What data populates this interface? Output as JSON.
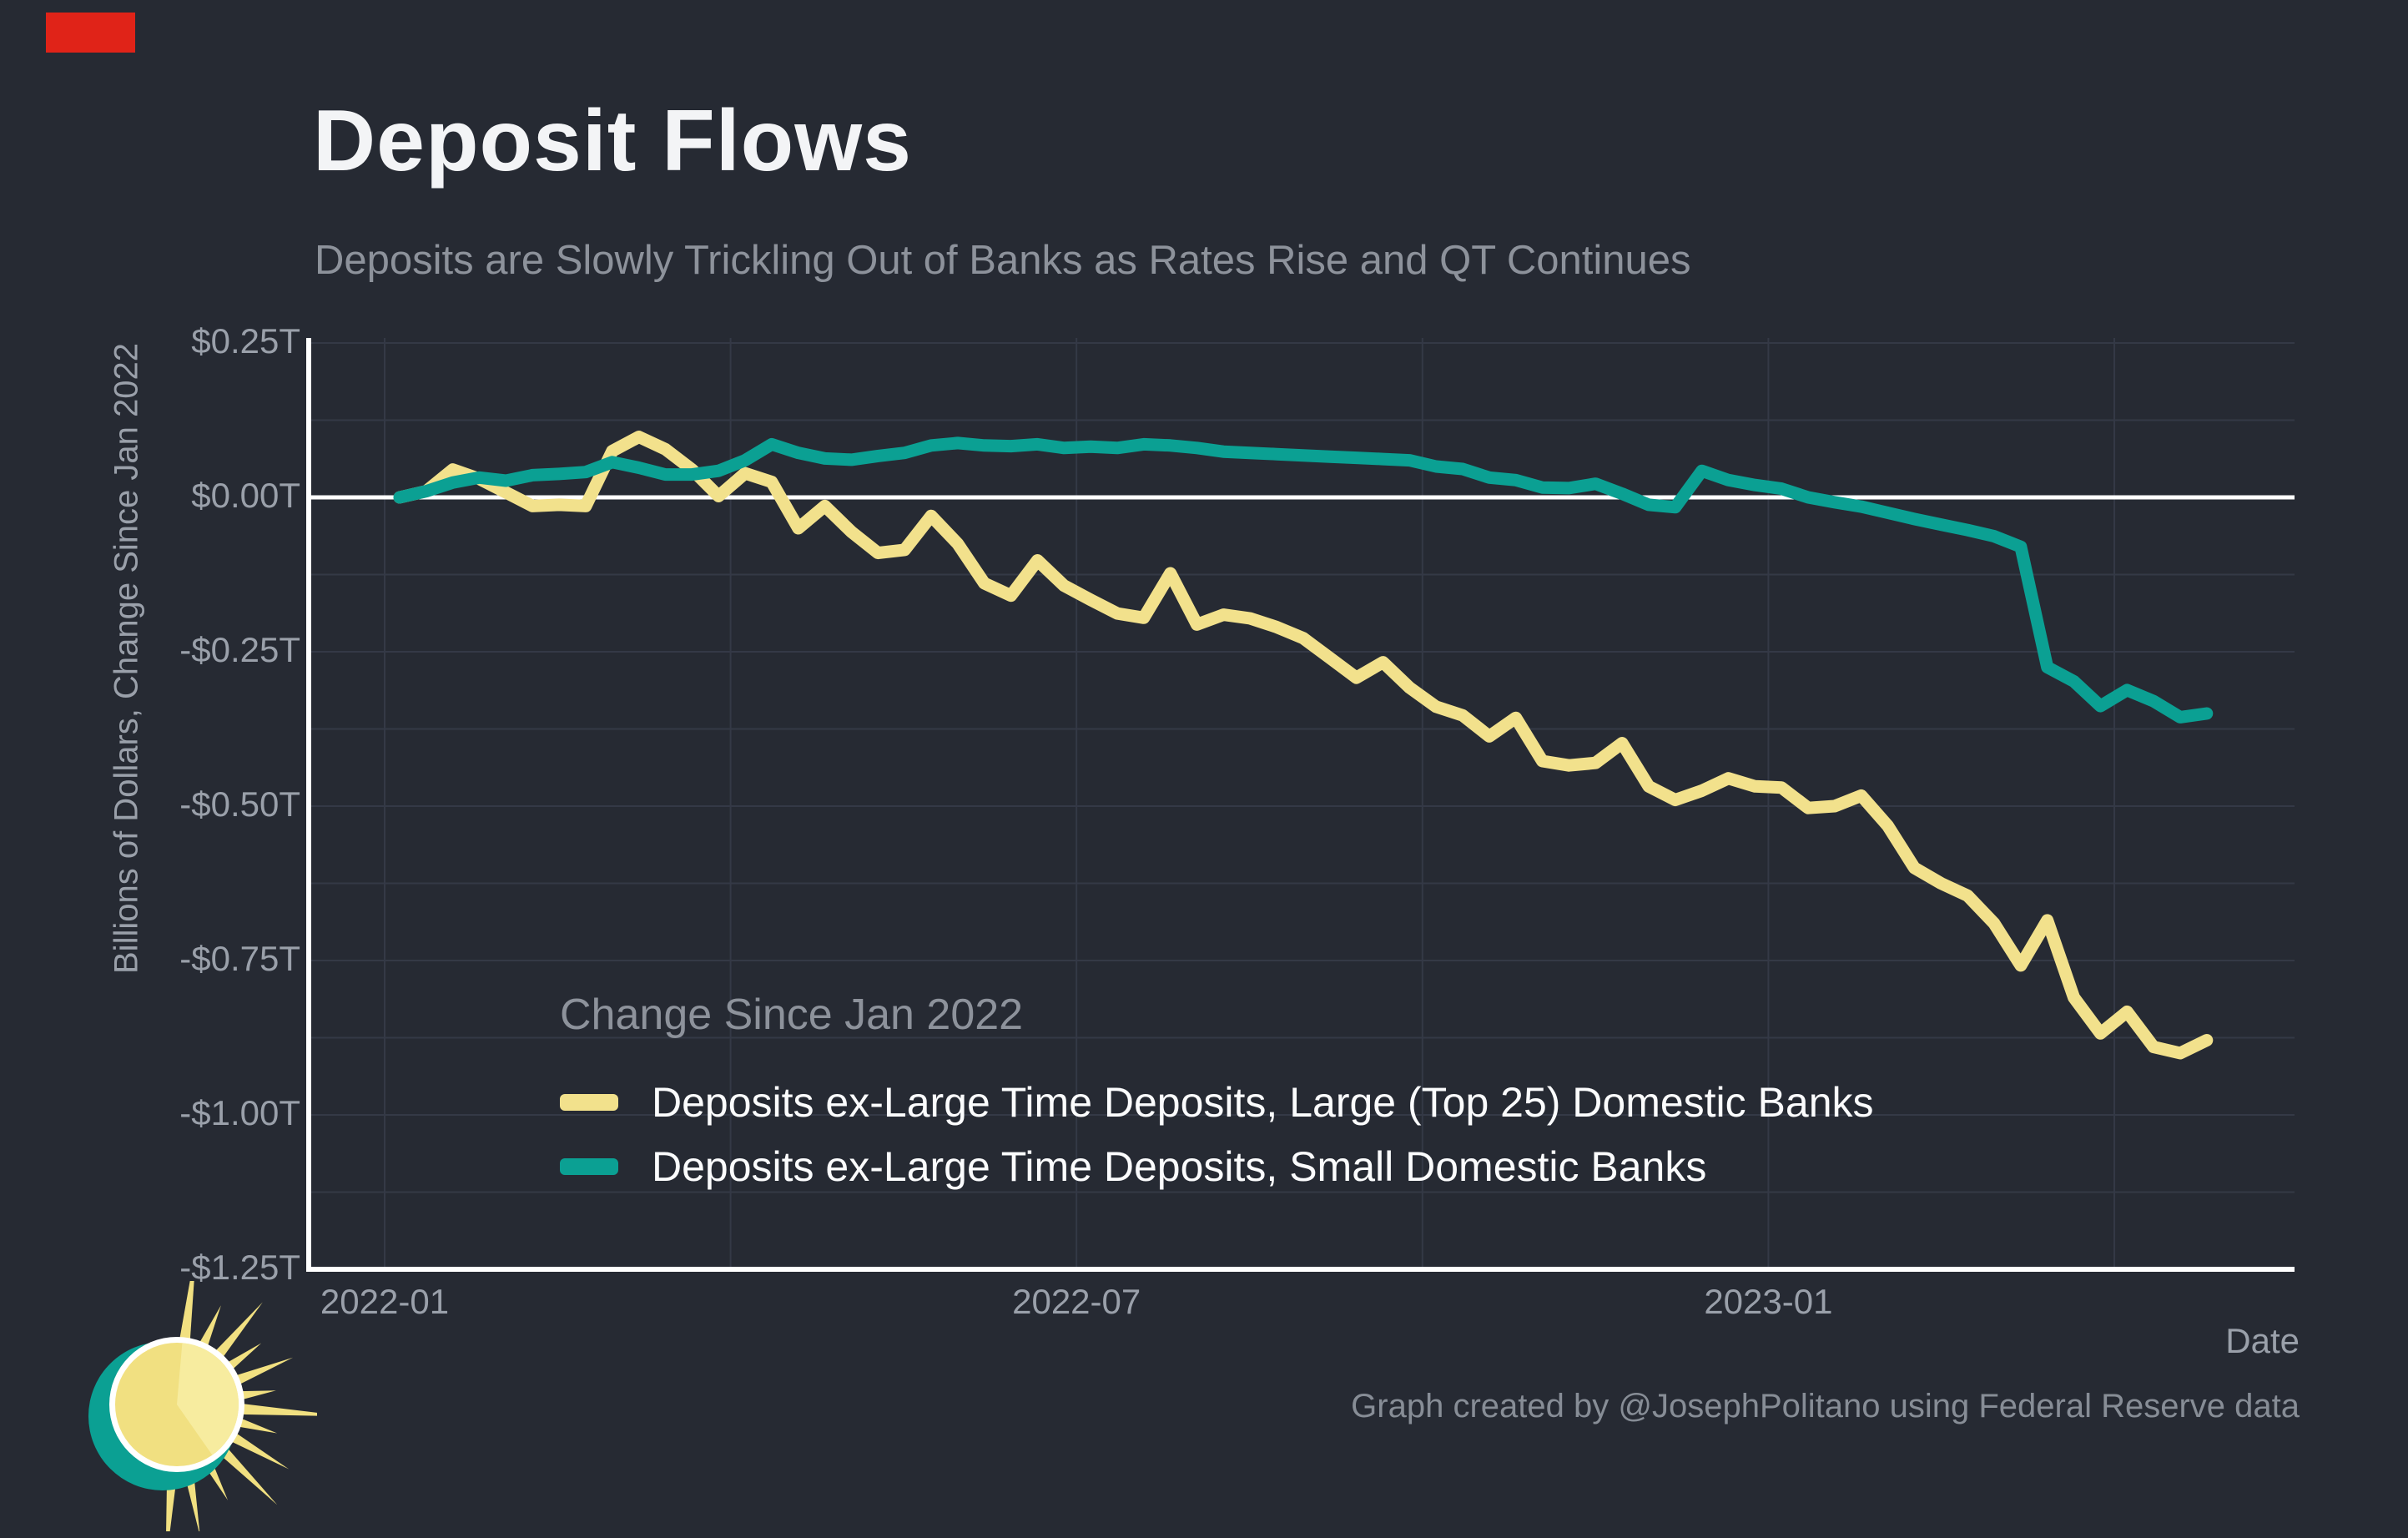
{
  "header": {
    "title": "Deposit Flows",
    "subtitle": "Deposits are Slowly Trickling Out of Banks as Rates Rise and QT Continues"
  },
  "chart_data": {
    "type": "line",
    "title": "Deposit Flows",
    "subtitle": "Deposits are Slowly Trickling Out of Banks as Rates Rise and QT Continues",
    "xlabel": "Date",
    "ylabel": "Billions of Dollars, Change Since Jan 2022",
    "ylim": [
      -1.25,
      0.25
    ],
    "y_gridline_step": 0.125,
    "grid": true,
    "legend_title": "Change Since Jan 2022",
    "legend_position": "inside-lower-left",
    "x_start_date": "2022-01-05",
    "x_step_days": 7,
    "n_points": 69,
    "x_ticks": [
      {
        "label": "2022-01",
        "month_offset": 0
      },
      {
        "label": "2022-07",
        "month_offset": 6
      },
      {
        "label": "2023-01",
        "month_offset": 12
      }
    ],
    "x_gridline_month_offsets": [
      0,
      3,
      6,
      9,
      12,
      15
    ],
    "y_ticks": [
      {
        "label": "$0.25T",
        "value": 0.25
      },
      {
        "label": "$0.00T",
        "value": 0.0
      },
      {
        "label": "-$0.25T",
        "value": -0.25
      },
      {
        "label": "-$0.50T",
        "value": -0.5
      },
      {
        "label": "-$0.75T",
        "value": -0.75
      },
      {
        "label": "-$1.00T",
        "value": -1.0
      },
      {
        "label": "-$1.25T",
        "value": -1.25
      }
    ],
    "series": [
      {
        "name": "Deposits ex-Large Time Deposits, Large (Top 25) Domestic Banks",
        "color": "#f2e18c",
        "values": [
          0.0,
          0.01,
          0.045,
          0.03,
          0.008,
          -0.014,
          -0.012,
          -0.014,
          0.075,
          0.098,
          0.078,
          0.045,
          0.002,
          0.039,
          0.025,
          -0.05,
          -0.014,
          -0.056,
          -0.09,
          -0.085,
          -0.03,
          -0.075,
          -0.139,
          -0.159,
          -0.102,
          -0.143,
          -0.166,
          -0.188,
          -0.195,
          -0.123,
          -0.206,
          -0.19,
          -0.196,
          -0.21,
          -0.228,
          -0.26,
          -0.292,
          -0.267,
          -0.308,
          -0.339,
          -0.353,
          -0.387,
          -0.357,
          -0.427,
          -0.434,
          -0.43,
          -0.398,
          -0.468,
          -0.49,
          -0.475,
          -0.455,
          -0.468,
          -0.47,
          -0.503,
          -0.5,
          -0.483,
          -0.532,
          -0.6,
          -0.625,
          -0.645,
          -0.69,
          -0.758,
          -0.685,
          -0.81,
          -0.868,
          -0.833,
          -0.89,
          -0.9,
          -0.879
        ]
      },
      {
        "name": "Deposits ex-Large Time Deposits, Small Domestic Banks",
        "color": "#0ba093",
        "values": [
          0.0,
          0.01,
          0.024,
          0.032,
          0.027,
          0.036,
          0.038,
          0.041,
          0.057,
          0.048,
          0.037,
          0.037,
          0.043,
          0.06,
          0.086,
          0.072,
          0.063,
          0.061,
          0.067,
          0.072,
          0.084,
          0.088,
          0.084,
          0.083,
          0.086,
          0.08,
          0.082,
          0.08,
          0.086,
          0.084,
          0.08,
          0.074,
          0.072,
          0.07,
          0.068,
          0.066,
          0.064,
          0.062,
          0.06,
          0.05,
          0.046,
          0.032,
          0.028,
          0.016,
          0.015,
          0.022,
          0.006,
          -0.012,
          -0.016,
          0.043,
          0.028,
          0.02,
          0.014,
          0.0,
          -0.008,
          -0.015,
          -0.025,
          -0.035,
          -0.044,
          -0.053,
          -0.063,
          -0.08,
          -0.275,
          -0.298,
          -0.338,
          -0.312,
          -0.33,
          -0.356,
          -0.35
        ]
      }
    ]
  },
  "footer": {
    "attribution": "Graph created by @JosephPolitano using Federal Reserve data"
  },
  "colors": {
    "background": "#262a33",
    "title_text": "#f3f4f6",
    "subtitle_text": "#8d929b",
    "tick_text": "#9aa0aa",
    "attribution_text": "#878d96",
    "gridline": "#343946",
    "zero_line": "#ffffff",
    "axis_line": "#ffffff",
    "series_large": "#f2e18c",
    "series_small": "#0ba093",
    "logo_yellow": "#f1e081",
    "logo_light_yellow": "#f7ec9f",
    "logo_teal": "#0ba093",
    "recording_badge": "#e02318"
  },
  "logo": {
    "name": "apricitas-sun-logo"
  }
}
